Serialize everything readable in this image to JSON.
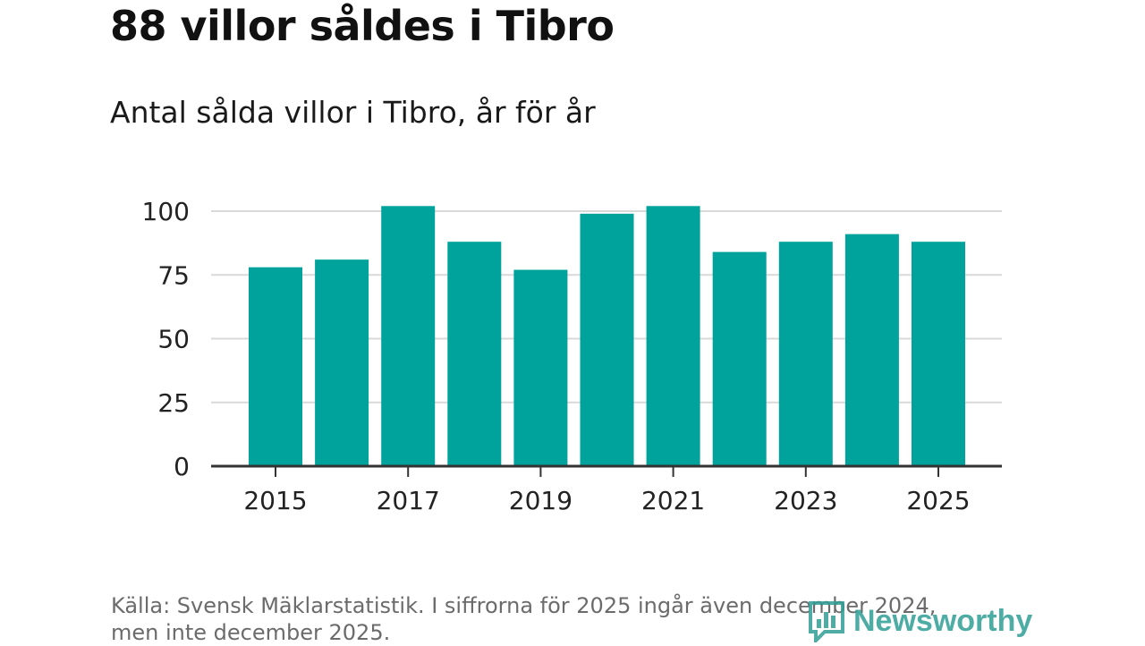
{
  "header": {
    "title": "88 villor såldes i Tibro",
    "subtitle": "Antal sålda villor i Tibro, år för år"
  },
  "footer": {
    "source_line1": "Källa: Svensk Mäklarstatistik. I siffrorna för 2025 ingår även december 2024,",
    "source_line2": "men inte december 2025.",
    "logo_text": "Newsworthy"
  },
  "colors": {
    "bar": "#00a39b",
    "grid": "#d9d9d9",
    "axis": "#333333",
    "logo": "#2f9e95"
  },
  "chart_data": {
    "type": "bar",
    "title": "88 villor såldes i Tibro",
    "subtitle": "Antal sålda villor i Tibro, år för år",
    "categories": [
      "2015",
      "2016",
      "2017",
      "2018",
      "2019",
      "2020",
      "2021",
      "2022",
      "2023",
      "2024",
      "2025"
    ],
    "values": [
      78,
      81,
      102,
      88,
      77,
      99,
      102,
      84,
      88,
      91,
      88
    ],
    "x_tick_labels": [
      "2015",
      "2017",
      "2019",
      "2021",
      "2023",
      "2025"
    ],
    "y_ticks": [
      0,
      25,
      50,
      75,
      100
    ],
    "ylim": [
      0,
      100
    ],
    "xlabel": "",
    "ylabel": "",
    "grid": "horizontal",
    "legend": "none"
  }
}
